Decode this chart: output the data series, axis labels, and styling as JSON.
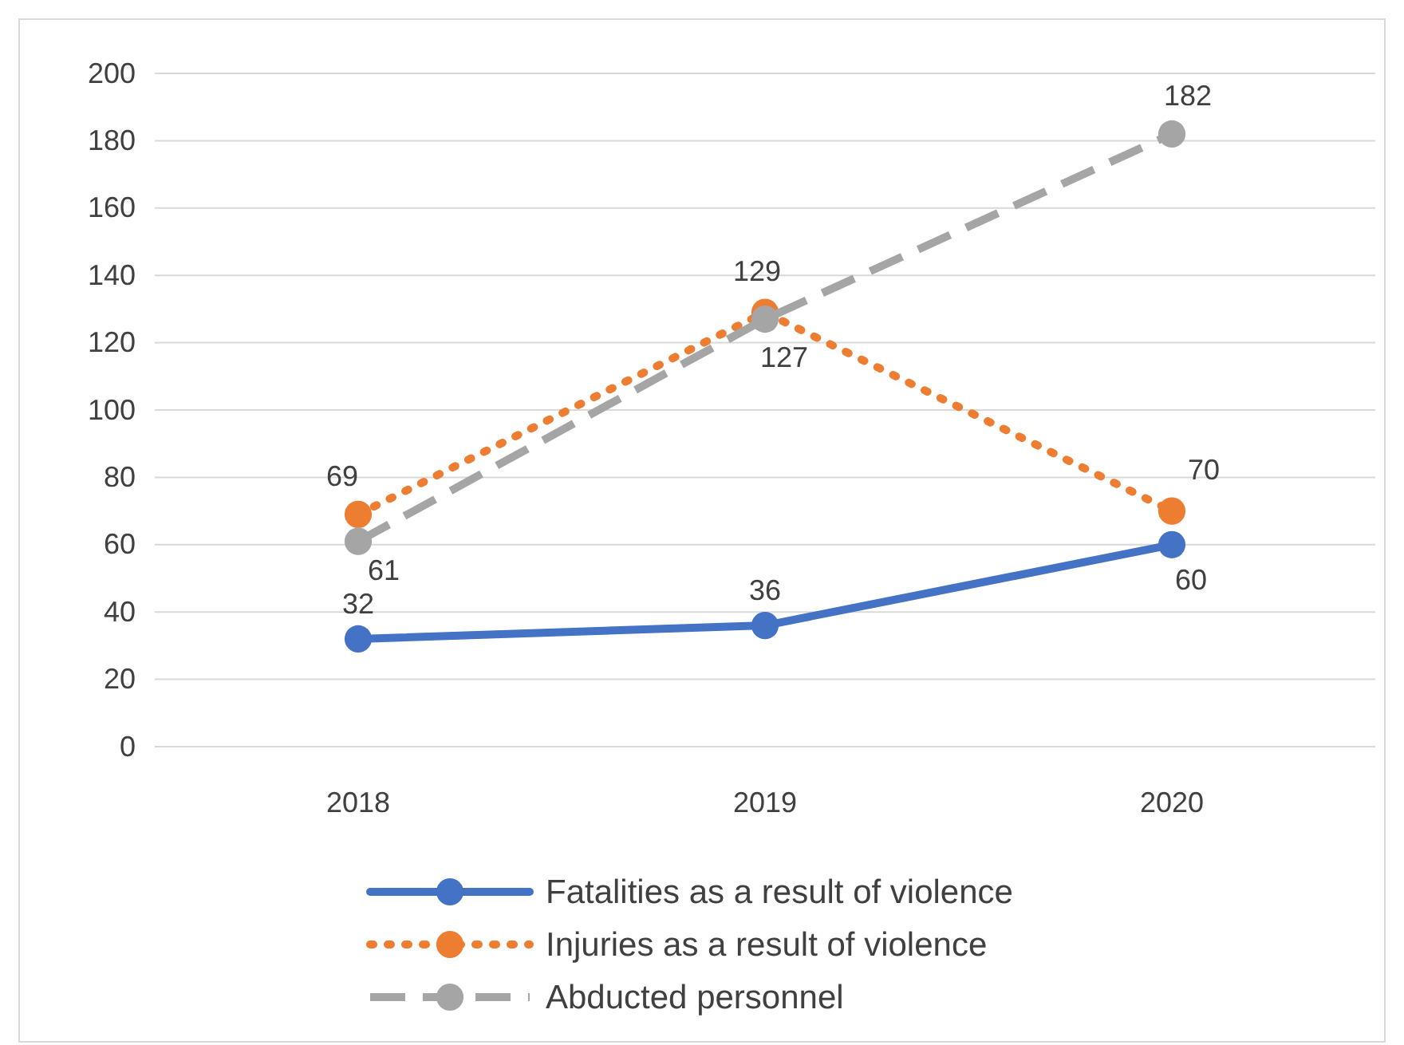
{
  "chart_data": {
    "type": "line",
    "categories": [
      "2018",
      "2019",
      "2020"
    ],
    "series": [
      {
        "name": "Fatalities as a result of violence",
        "color": "#4472c4",
        "line_style": "solid",
        "values": [
          32,
          36,
          60
        ]
      },
      {
        "name": "Injuries as a result of violence",
        "color": "#ed7d31",
        "line_style": "dotted",
        "values": [
          69,
          129,
          70
        ]
      },
      {
        "name": "Abducted personnel",
        "color": "#a5a5a5",
        "line_style": "dashed",
        "values": [
          61,
          127,
          182
        ]
      }
    ],
    "ylim": [
      0,
      200
    ],
    "yticks": [
      0,
      20,
      40,
      60,
      80,
      100,
      120,
      140,
      160,
      180,
      200
    ],
    "grid": "y",
    "legend": "bottom",
    "marker": "circle",
    "data_labels": true
  }
}
